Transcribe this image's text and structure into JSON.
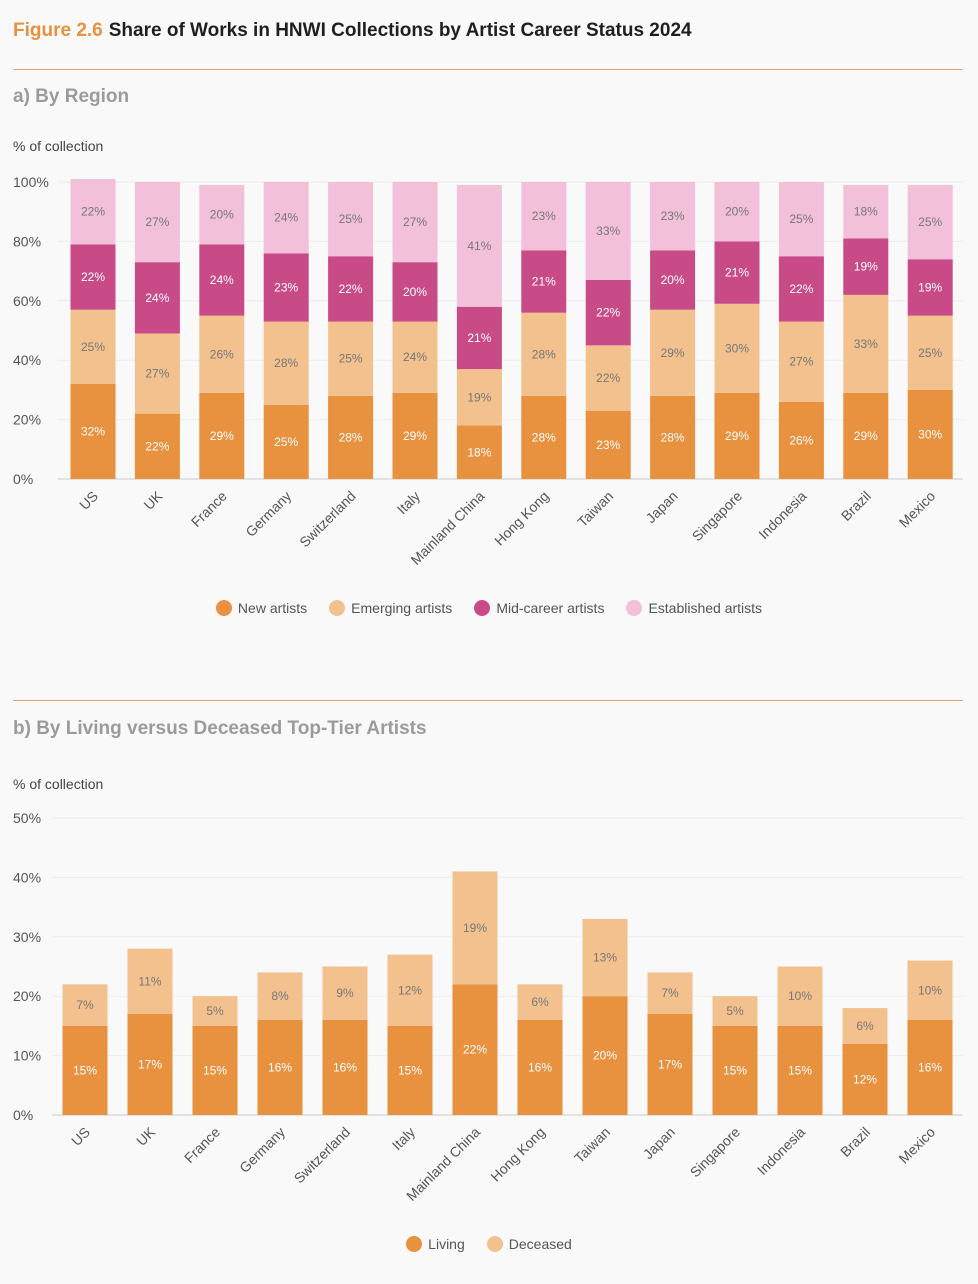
{
  "figure": {
    "label": "Figure 2.6",
    "title": "Share of Works in HNWI Collections by Artist Career Status 2024"
  },
  "chart_data": [
    {
      "type": "bar",
      "stacked": true,
      "title": "a) By Region",
      "ylabel": "% of collection",
      "ylim": [
        0,
        100
      ],
      "yticks": [
        0,
        20,
        40,
        60,
        80,
        100
      ],
      "tick_format": "{v}%",
      "categories": [
        "US",
        "UK",
        "France",
        "Germany",
        "Switzerland",
        "Italy",
        "Mainland China",
        "Hong Kong",
        "Taiwan",
        "Japan",
        "Singapore",
        "Indonesia",
        "Brazil",
        "Mexico"
      ],
      "series": [
        {
          "name": "New artists",
          "color": "#e8913f",
          "label_color": "#ffffff",
          "values": [
            32,
            22,
            29,
            25,
            28,
            29,
            18,
            28,
            23,
            28,
            29,
            26,
            29,
            30
          ]
        },
        {
          "name": "Emerging artists",
          "color": "#f2c18e",
          "label_color": "#777777",
          "values": [
            25,
            27,
            26,
            28,
            25,
            24,
            19,
            28,
            22,
            29,
            30,
            27,
            33,
            25
          ]
        },
        {
          "name": "Mid-career artists",
          "color": "#c84b87",
          "label_color": "#ffffff",
          "values": [
            22,
            24,
            24,
            23,
            22,
            20,
            21,
            21,
            22,
            20,
            21,
            22,
            19,
            19
          ]
        },
        {
          "name": "Established artists",
          "color": "#f2c1d9",
          "label_color": "#777777",
          "values": [
            22,
            27,
            20,
            24,
            25,
            27,
            41,
            23,
            33,
            23,
            20,
            25,
            18,
            25
          ]
        }
      ]
    },
    {
      "type": "bar",
      "stacked": true,
      "title": "b) By Living versus Deceased Top-Tier Artists",
      "ylabel": "% of collection",
      "ylim": [
        0,
        50
      ],
      "yticks": [
        0,
        10,
        20,
        30,
        40,
        50
      ],
      "tick_format": "{v}%",
      "categories": [
        "US",
        "UK",
        "France",
        "Germany",
        "Switzerland",
        "Italy",
        "Mainland China",
        "Hong Kong",
        "Taiwan",
        "Japan",
        "Singapore",
        "Indonesia",
        "Brazil",
        "Mexico"
      ],
      "series": [
        {
          "name": "Living",
          "color": "#e8913f",
          "label_color": "#ffffff",
          "values": [
            15,
            17,
            15,
            16,
            16,
            15,
            22,
            16,
            20,
            17,
            15,
            15,
            12,
            16
          ]
        },
        {
          "name": "Deceased",
          "color": "#f2c18e",
          "label_color": "#777777",
          "values": [
            7,
            11,
            5,
            8,
            9,
            12,
            19,
            6,
            13,
            7,
            5,
            10,
            6,
            10
          ]
        }
      ]
    }
  ]
}
